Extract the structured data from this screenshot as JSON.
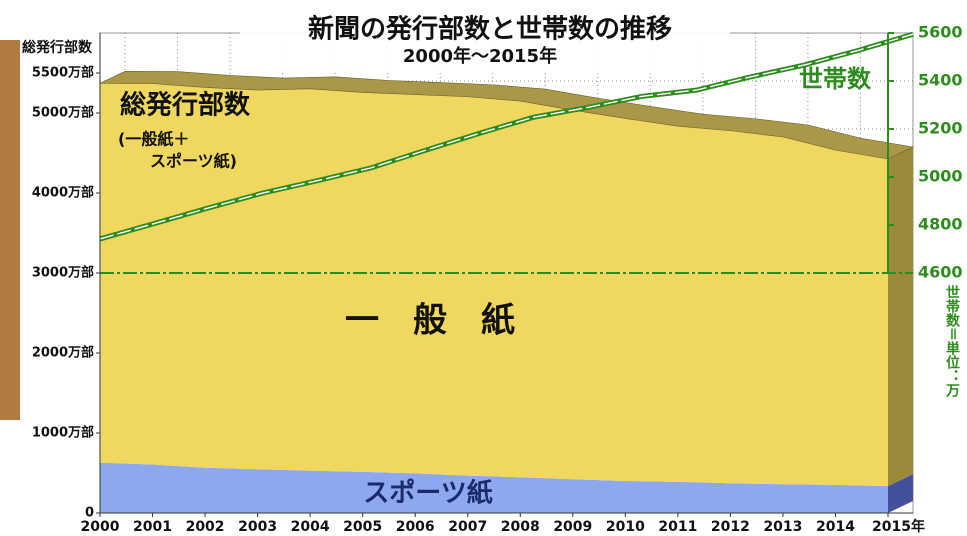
{
  "chart_data": {
    "type": "area3d",
    "title": "新聞の発行部数と世帯数の推移",
    "subtitle": "2000年〜2015年",
    "y_label": "総発行部数",
    "y2_label": "世帯数＝単位：万",
    "annotations": [
      "総発行部数",
      "(一般紙＋",
      "スポーツ紙)"
    ],
    "categories": [
      "2000",
      "2001",
      "2002",
      "2003",
      "2004",
      "2005",
      "2006",
      "2007",
      "2008",
      "2009",
      "2010",
      "2011",
      "2012",
      "2013",
      "2014",
      "2015年"
    ],
    "series": [
      {
        "name": "スポーツ紙",
        "color": "#8ea8f0",
        "values": [
          630,
          606,
          566,
          547,
          530,
          514,
          496,
          467,
          447,
          422,
          400,
          389,
          372,
          360,
          351,
          336
        ]
      },
      {
        "name": "一　般　紙",
        "color": "#f0d860",
        "values": [
          4741,
          4762,
          4754,
          4740,
          4772,
          4743,
          4735,
          4736,
          4702,
          4613,
          4532,
          4446,
          4406,
          4340,
          4185,
          4089
        ]
      },
      {
        "name": "世帯数",
        "color": "#2e8b1e",
        "axis": "y2",
        "values": [
          4742,
          4806,
          4871,
          4933,
          4984,
          5038,
          5111,
          5182,
          5249,
          5290,
          5336,
          5362,
          5417,
          5467,
          5528,
          5595
        ]
      }
    ],
    "ylim": [
      0,
      6000
    ],
    "yticks": [
      0,
      {
        "value": 1000,
        "label": "1000万部"
      },
      {
        "value": 2000,
        "label": "2000万部"
      },
      {
        "value": 3000,
        "label": "3000万部"
      },
      {
        "value": 4000,
        "label": "4000万部"
      },
      {
        "value": 5000,
        "label": "5000万部"
      },
      {
        "value": 5500,
        "label": "5500万部"
      }
    ],
    "y2lim": [
      3600,
      5600
    ],
    "y2ticks": [
      4600,
      4800,
      5000,
      5200,
      5400,
      5600
    ],
    "grid": true
  }
}
